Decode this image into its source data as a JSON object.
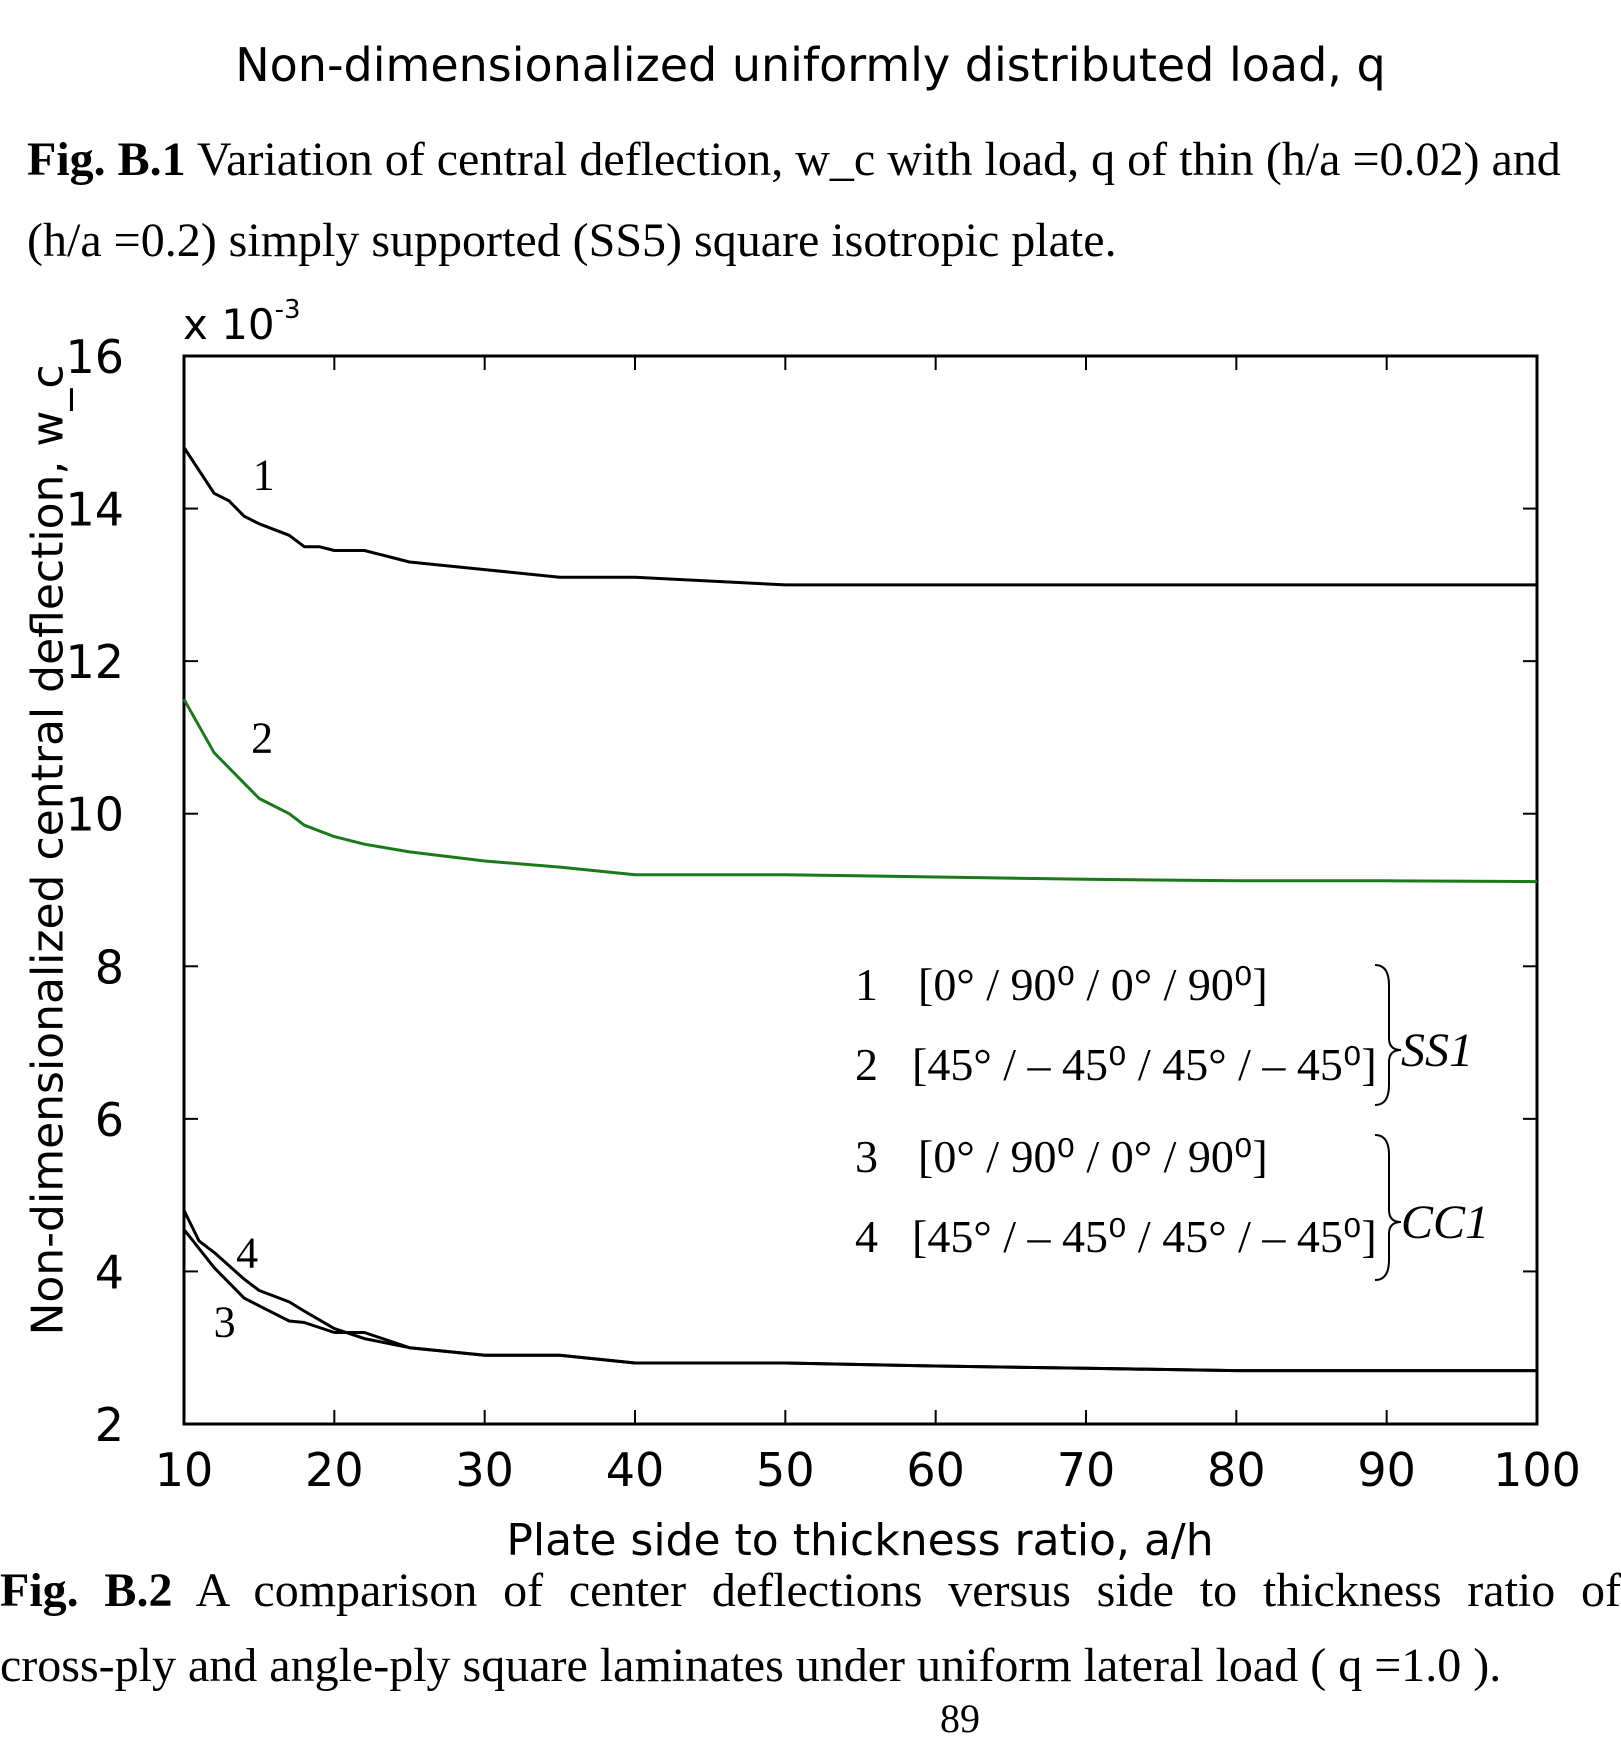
{
  "top_xlabel": "Non-dimensionalized uniformly distributed load, q",
  "caption1": {
    "label": "Fig. B.1",
    "line1": "Variation of central deflection, w_c with load, q of thin (h/a =0.02) and",
    "line2": "(h/a =0.2) simply supported (SS5) square isotropic plate."
  },
  "caption2": {
    "label": "Fig. B.2",
    "line1": "A comparison of center deflections versus side to thickness ratio of",
    "line2": "cross-ply and angle-ply square laminates under uniform lateral load ( q =1.0 )."
  },
  "page_number": "89",
  "chart_data": {
    "type": "line",
    "xlabel": "Plate side to thickness ratio, a/h",
    "ylabel": "Non-dimensionalized central deflection, w_c",
    "y_exponent_base": "x 10",
    "y_exponent_power": "-3",
    "xlim": [
      10,
      100
    ],
    "ylim": [
      2,
      16
    ],
    "xticks": [
      10,
      20,
      30,
      40,
      50,
      60,
      70,
      80,
      90,
      100
    ],
    "yticks": [
      2,
      4,
      6,
      8,
      10,
      12,
      14,
      16
    ],
    "grid": false,
    "series": [
      {
        "name": "1",
        "color": "#000000",
        "x": [
          10,
          12,
          13,
          14,
          15,
          17,
          18,
          19,
          20,
          22,
          25,
          30,
          35,
          40,
          50,
          60,
          70,
          80,
          90,
          100
        ],
        "y": [
          14.8,
          14.2,
          14.1,
          13.9,
          13.8,
          13.65,
          13.5,
          13.5,
          13.45,
          13.45,
          13.3,
          13.2,
          13.1,
          13.1,
          13.0,
          13.0,
          13.0,
          13.0,
          13.0,
          13.0
        ]
      },
      {
        "name": "2",
        "color": "#1a7a1a",
        "x": [
          10,
          12,
          13,
          15,
          17,
          18,
          20,
          22,
          25,
          30,
          35,
          40,
          50,
          60,
          70,
          80,
          90,
          100
        ],
        "y": [
          11.5,
          10.8,
          10.6,
          10.2,
          10.0,
          9.85,
          9.7,
          9.6,
          9.5,
          9.38,
          9.3,
          9.2,
          9.2,
          9.17,
          9.14,
          9.12,
          9.12,
          9.11
        ]
      },
      {
        "name": "3",
        "color": "#000000",
        "x": [
          10,
          12,
          14,
          16,
          17,
          18,
          20,
          22,
          25,
          30,
          35,
          40,
          50,
          60,
          70,
          80,
          90,
          100
        ],
        "y": [
          4.55,
          4.05,
          3.65,
          3.45,
          3.35,
          3.33,
          3.2,
          3.2,
          3.0,
          2.9,
          2.9,
          2.8,
          2.8,
          2.76,
          2.73,
          2.7,
          2.7,
          2.7
        ]
      },
      {
        "name": "4",
        "color": "#000000",
        "x": [
          10,
          11,
          12,
          14,
          15,
          17,
          18,
          20,
          22,
          25,
          30,
          35,
          40,
          50,
          60,
          70,
          80,
          90,
          100
        ],
        "y": [
          4.8,
          4.4,
          4.25,
          3.9,
          3.75,
          3.6,
          3.48,
          3.25,
          3.12,
          3.0,
          2.9,
          2.9,
          2.8,
          2.8,
          2.76,
          2.73,
          2.7,
          2.7,
          2.7
        ]
      }
    ],
    "curve_labels": [
      {
        "text": "1",
        "x": 15.3,
        "y": 14.25
      },
      {
        "text": "2",
        "x": 15.2,
        "y": 10.8
      },
      {
        "text": "3",
        "x": 12.7,
        "y": 3.15
      },
      {
        "text": "4",
        "x": 14.2,
        "y": 4.05
      }
    ],
    "legend": {
      "position": "lower-right",
      "entries": [
        {
          "num": "1",
          "layup": "[0° / 90⁰ / 0° / 90⁰]"
        },
        {
          "num": "2",
          "layup": "[45° / – 45⁰ / 45° / – 45⁰]"
        },
        {
          "num": "3",
          "layup": "[0° / 90⁰ / 0° / 90⁰]"
        },
        {
          "num": "4",
          "layup": "[45° / – 45⁰ / 45° / – 45⁰]"
        }
      ],
      "groups": [
        {
          "label": "SS1",
          "members": [
            "1",
            "2"
          ]
        },
        {
          "label": "CC1",
          "members": [
            "3",
            "4"
          ]
        }
      ]
    }
  }
}
